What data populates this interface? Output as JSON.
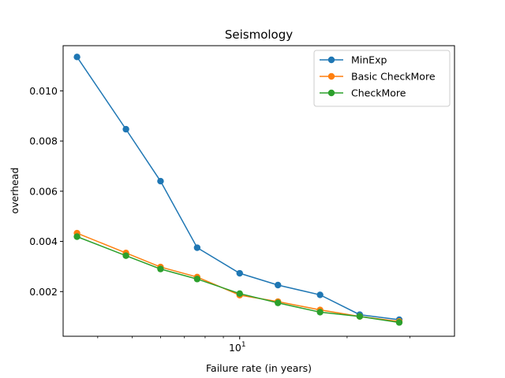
{
  "chart_data": {
    "type": "line",
    "title": "Seismology",
    "xlabel": "Failure rate (in years)",
    "ylabel": "overhead",
    "x_scale": "log",
    "xlim": [
      3.2,
      40
    ],
    "ylim": [
      0.00022,
      0.0118
    ],
    "x": [
      3.5,
      4.8,
      6.0,
      7.6,
      10.0,
      12.8,
      16.8,
      21.7,
      28.0
    ],
    "x_ticks": [
      {
        "value": 10,
        "label": "10^1"
      }
    ],
    "x_minor_ticks": [
      4,
      5,
      6,
      7,
      8,
      9,
      20,
      30
    ],
    "y_ticks": [
      {
        "value": 0.002,
        "label": "0.002"
      },
      {
        "value": 0.004,
        "label": "0.004"
      },
      {
        "value": 0.006,
        "label": "0.006"
      },
      {
        "value": 0.008,
        "label": "0.008"
      },
      {
        "value": 0.01,
        "label": "0.010"
      }
    ],
    "grid": false,
    "legend_position": "top-right",
    "series": [
      {
        "name": "MinExp",
        "color": "#1f77b4",
        "values": [
          0.01135,
          0.00847,
          0.0064,
          0.00375,
          0.00273,
          0.00226,
          0.00187,
          0.00108,
          0.00088
        ]
      },
      {
        "name": "Basic CheckMore",
        "color": "#ff7f0e",
        "values": [
          0.00433,
          0.00354,
          0.00298,
          0.00258,
          0.00186,
          0.0016,
          0.00127,
          0.00101,
          0.00081
        ]
      },
      {
        "name": "CheckMore",
        "color": "#2ca02c",
        "values": [
          0.00419,
          0.00343,
          0.0029,
          0.0025,
          0.00192,
          0.00155,
          0.00118,
          0.00101,
          0.00077
        ]
      }
    ]
  }
}
